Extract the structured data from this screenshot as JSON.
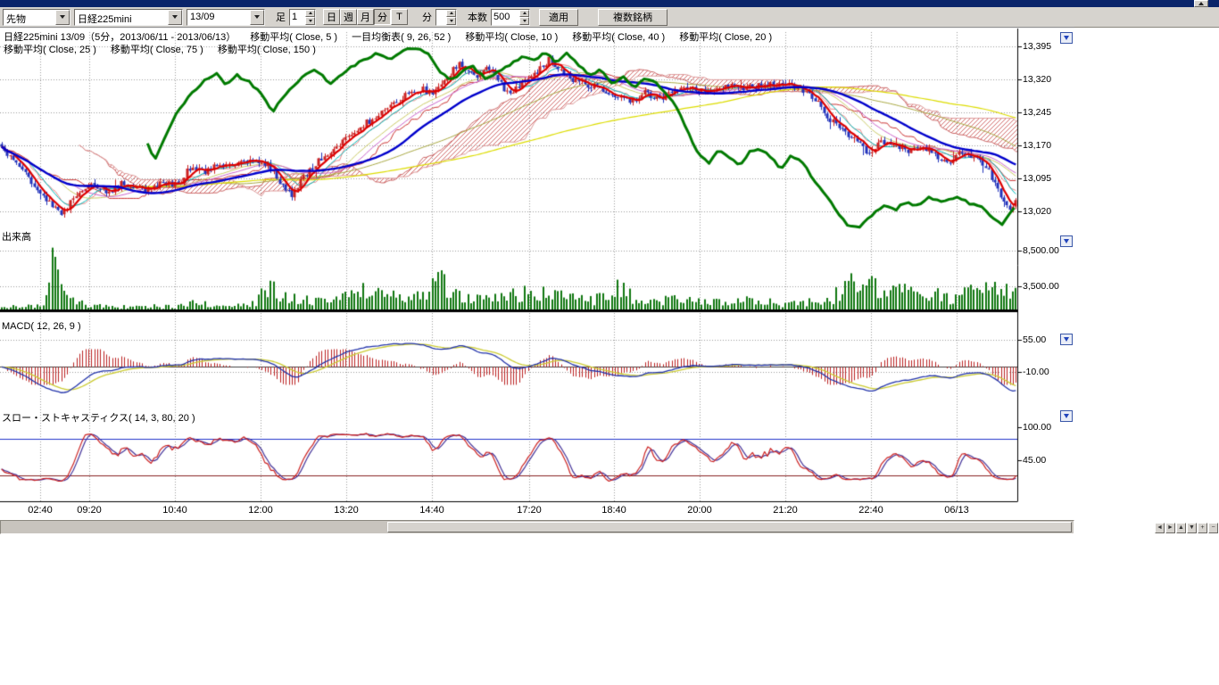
{
  "toolbar": {
    "category_select": "先物",
    "symbol_select": "日経225mini",
    "contract_select": "13/09",
    "bar_type_label": "足",
    "bar_interval_value": "1",
    "period_buttons": [
      "日",
      "週",
      "月",
      "分",
      "T"
    ],
    "active_period": "分",
    "minute_label": "分",
    "minute_value": "",
    "count_label": "本数",
    "count_value": "500",
    "apply_button": "適用",
    "multi_symbol_button": "複数銘柄"
  },
  "header": {
    "line1": [
      "日経225mini 13/09（5分，2013/06/11 - 2013/06/13）",
      "移動平均( Close, 5 )",
      "一目均衡表( 9, 26, 52 )",
      "移動平均( Close, 10 )",
      "移動平均( Close, 40 )",
      "移動平均( Close, 20 )"
    ],
    "line2": [
      "移動平均( Close, 25 )",
      "移動平均( Close, 75 )",
      "移動平均( Close, 150 )"
    ]
  },
  "panes": {
    "price": {
      "axis_labels": [
        "13,395",
        "13,320",
        "13,245",
        "13,170",
        "13,095",
        "13,020"
      ]
    },
    "volume": {
      "label": "出来高",
      "axis_labels": [
        "8,500.00",
        "3,500.00"
      ]
    },
    "macd": {
      "label": "MACD( 12, 26, 9 )",
      "axis_labels": [
        "55.00",
        "-10.00"
      ]
    },
    "stoch": {
      "label": "スロー・ストキャスティクス( 14, 3, 80, 20 )",
      "axis_labels": [
        "100.00",
        "45.00"
      ]
    }
  },
  "time_axis": {
    "labels": [
      "02:40",
      "09:20",
      "10:40",
      "12:00",
      "13:20",
      "14:40",
      "17:20",
      "18:40",
      "20:00",
      "21:20",
      "22:40",
      "06/13"
    ]
  },
  "chart_data": {
    "type": "candlestick",
    "title": "日経225mini 13/09（5分，2013/06/11 - 2013/06/13）",
    "symbol": "日経225mini 13/09",
    "interval": "5分",
    "date_range": "2013/06/11 - 2013/06/13",
    "bars": 340,
    "ylim": [
      12975,
      13435
    ],
    "price_gridlines": [
      13395,
      13320,
      13245,
      13170,
      13095,
      13020
    ],
    "volume_gridlines": [
      8500,
      3500
    ],
    "macd_gridlines": [
      55,
      -10
    ],
    "stoch_gridlines": [
      100,
      45
    ],
    "stoch_ref_lines": [
      80,
      20
    ],
    "indicators": {
      "moving_averages": [
        5,
        10,
        20,
        25,
        40,
        75,
        150
      ],
      "ichimoku": [
        9,
        26,
        52
      ],
      "macd": [
        12,
        26,
        9
      ],
      "slow_stochastics": [
        14,
        3,
        80,
        20
      ]
    },
    "close_path": [
      [
        0,
        13165
      ],
      [
        0.015,
        13125
      ],
      [
        0.03,
        13085
      ],
      [
        0.05,
        13035
      ],
      [
        0.06,
        13015
      ],
      [
        0.075,
        13060
      ],
      [
        0.09,
        13080
      ],
      [
        0.105,
        13065
      ],
      [
        0.12,
        13085
      ],
      [
        0.14,
        13070
      ],
      [
        0.16,
        13085
      ],
      [
        0.175,
        13080
      ],
      [
        0.185,
        13120
      ],
      [
        0.2,
        13110
      ],
      [
        0.215,
        13125
      ],
      [
        0.235,
        13130
      ],
      [
        0.255,
        13135
      ],
      [
        0.265,
        13120
      ],
      [
        0.275,
        13085
      ],
      [
        0.285,
        13055
      ],
      [
        0.295,
        13090
      ],
      [
        0.31,
        13130
      ],
      [
        0.325,
        13155
      ],
      [
        0.34,
        13185
      ],
      [
        0.355,
        13215
      ],
      [
        0.37,
        13235
      ],
      [
        0.385,
        13260
      ],
      [
        0.4,
        13285
      ],
      [
        0.415,
        13300
      ],
      [
        0.425,
        13285
      ],
      [
        0.44,
        13325
      ],
      [
        0.45,
        13355
      ],
      [
        0.46,
        13335
      ],
      [
        0.47,
        13325
      ],
      [
        0.48,
        13350
      ],
      [
        0.49,
        13320
      ],
      [
        0.5,
        13285
      ],
      [
        0.51,
        13305
      ],
      [
        0.525,
        13330
      ],
      [
        0.54,
        13365
      ],
      [
        0.55,
        13345
      ],
      [
        0.56,
        13325
      ],
      [
        0.575,
        13310
      ],
      [
        0.59,
        13300
      ],
      [
        0.605,
        13280
      ],
      [
        0.62,
        13270
      ],
      [
        0.635,
        13290
      ],
      [
        0.65,
        13275
      ],
      [
        0.665,
        13300
      ],
      [
        0.69,
        13295
      ],
      [
        0.71,
        13305
      ],
      [
        0.73,
        13300
      ],
      [
        0.75,
        13305
      ],
      [
        0.77,
        13310
      ],
      [
        0.785,
        13305
      ],
      [
        0.795,
        13290
      ],
      [
        0.805,
        13265
      ],
      [
        0.815,
        13235
      ],
      [
        0.83,
        13200
      ],
      [
        0.845,
        13175
      ],
      [
        0.855,
        13150
      ],
      [
        0.868,
        13180
      ],
      [
        0.88,
        13170
      ],
      [
        0.893,
        13158
      ],
      [
        0.905,
        13172
      ],
      [
        0.92,
        13150
      ],
      [
        0.933,
        13128
      ],
      [
        0.945,
        13155
      ],
      [
        0.955,
        13148
      ],
      [
        0.965,
        13130
      ],
      [
        0.975,
        13105
      ],
      [
        0.985,
        13060
      ],
      [
        0.993,
        13022
      ],
      [
        1,
        13045
      ]
    ],
    "green_overlay_path": [
      [
        0.145,
        13175
      ],
      [
        0.152,
        13135
      ],
      [
        0.16,
        13175
      ],
      [
        0.172,
        13240
      ],
      [
        0.185,
        13280
      ],
      [
        0.2,
        13315
      ],
      [
        0.212,
        13335
      ],
      [
        0.222,
        13305
      ],
      [
        0.232,
        13330
      ],
      [
        0.245,
        13315
      ],
      [
        0.258,
        13285
      ],
      [
        0.268,
        13245
      ],
      [
        0.28,
        13285
      ],
      [
        0.295,
        13320
      ],
      [
        0.31,
        13345
      ],
      [
        0.325,
        13310
      ],
      [
        0.34,
        13340
      ],
      [
        0.355,
        13360
      ],
      [
        0.37,
        13380
      ],
      [
        0.382,
        13365
      ],
      [
        0.395,
        13385
      ],
      [
        0.408,
        13392
      ],
      [
        0.42,
        13380
      ],
      [
        0.432,
        13340
      ],
      [
        0.443,
        13315
      ],
      [
        0.455,
        13340
      ],
      [
        0.465,
        13348
      ],
      [
        0.477,
        13322
      ],
      [
        0.49,
        13338
      ],
      [
        0.502,
        13356
      ],
      [
        0.513,
        13372
      ],
      [
        0.525,
        13362
      ],
      [
        0.535,
        13380
      ],
      [
        0.547,
        13360
      ],
      [
        0.557,
        13382
      ],
      [
        0.568,
        13355
      ],
      [
        0.58,
        13328
      ],
      [
        0.59,
        13342
      ],
      [
        0.602,
        13312
      ],
      [
        0.613,
        13325
      ],
      [
        0.623,
        13302
      ],
      [
        0.633,
        13322
      ],
      [
        0.645,
        13310
      ],
      [
        0.655,
        13288
      ],
      [
        0.665,
        13258
      ],
      [
        0.675,
        13205
      ],
      [
        0.685,
        13155
      ],
      [
        0.697,
        13132
      ],
      [
        0.707,
        13162
      ],
      [
        0.717,
        13142
      ],
      [
        0.727,
        13122
      ],
      [
        0.737,
        13158
      ],
      [
        0.748,
        13162
      ],
      [
        0.758,
        13140
      ],
      [
        0.768,
        13118
      ],
      [
        0.778,
        13148
      ],
      [
        0.79,
        13130
      ],
      [
        0.8,
        13092
      ],
      [
        0.81,
        13062
      ],
      [
        0.82,
        13030
      ],
      [
        0.832,
        12992
      ],
      [
        0.845,
        12982
      ],
      [
        0.857,
        13012
      ],
      [
        0.87,
        13032
      ],
      [
        0.88,
        13022
      ],
      [
        0.89,
        13042
      ],
      [
        0.9,
        13030
      ],
      [
        0.912,
        13052
      ],
      [
        0.925,
        13040
      ],
      [
        0.94,
        13052
      ],
      [
        0.952,
        13040
      ],
      [
        0.965,
        13028
      ],
      [
        0.975,
        13008
      ],
      [
        0.985,
        12988
      ],
      [
        0.995,
        13025
      ]
    ],
    "volume_profile": [
      [
        0,
        900
      ],
      [
        0.03,
        700
      ],
      [
        0.045,
        2000
      ],
      [
        0.05,
        9200
      ],
      [
        0.055,
        5200
      ],
      [
        0.06,
        2600
      ],
      [
        0.08,
        1200
      ],
      [
        0.1,
        900
      ],
      [
        0.12,
        700
      ],
      [
        0.15,
        800
      ],
      [
        0.17,
        650
      ],
      [
        0.19,
        1500
      ],
      [
        0.21,
        900
      ],
      [
        0.23,
        800
      ],
      [
        0.25,
        1300
      ],
      [
        0.265,
        4100
      ],
      [
        0.28,
        2200
      ],
      [
        0.3,
        1800
      ],
      [
        0.32,
        1500
      ],
      [
        0.34,
        2600
      ],
      [
        0.36,
        3600
      ],
      [
        0.38,
        2100
      ],
      [
        0.4,
        2600
      ],
      [
        0.42,
        3100
      ],
      [
        0.43,
        5700
      ],
      [
        0.445,
        2600
      ],
      [
        0.46,
        2100
      ],
      [
        0.48,
        1900
      ],
      [
        0.5,
        2300
      ],
      [
        0.52,
        3300
      ],
      [
        0.54,
        2700
      ],
      [
        0.55,
        3900
      ],
      [
        0.565,
        2100
      ],
      [
        0.58,
        1600
      ],
      [
        0.6,
        2600
      ],
      [
        0.61,
        3700
      ],
      [
        0.625,
        1900
      ],
      [
        0.64,
        1300
      ],
      [
        0.66,
        2100
      ],
      [
        0.68,
        1600
      ],
      [
        0.7,
        1300
      ],
      [
        0.72,
        1600
      ],
      [
        0.74,
        1900
      ],
      [
        0.76,
        1400
      ],
      [
        0.78,
        1100
      ],
      [
        0.8,
        1600
      ],
      [
        0.82,
        2100
      ],
      [
        0.835,
        4600
      ],
      [
        0.85,
        3100
      ],
      [
        0.862,
        4100
      ],
      [
        0.875,
        2600
      ],
      [
        0.887,
        3300
      ],
      [
        0.9,
        2900
      ],
      [
        0.912,
        2300
      ],
      [
        0.925,
        2600
      ],
      [
        0.937,
        1900
      ],
      [
        0.95,
        2700
      ],
      [
        0.962,
        3100
      ],
      [
        0.975,
        3500
      ],
      [
        0.987,
        2900
      ],
      [
        1,
        3300
      ]
    ]
  },
  "colors": {
    "background": "#ffffff",
    "toolbar_bg": "#d6d3ce",
    "titlebar": "#0a246a",
    "grid": "#9a9a9a",
    "candle_up": "#cc2222",
    "candle_down": "#2233bb",
    "ma5": "#dd0000",
    "ma10": "#00bbbb",
    "ma20": "#cccc66",
    "ma25": "#cc66cc",
    "ma40": "#0000cc",
    "ma75": "#aaaa44",
    "ma150": "#dddd00",
    "ichimoku_cloud": "#cc4646",
    "overlay_line": "#007a00",
    "volume": "#117711",
    "macd_line": "#2233aa",
    "macd_signal": "#cccc33",
    "macd_hist": "#bb2222",
    "stoch_k": "#cc2222",
    "stoch_d": "#443399",
    "stoch_ref_upper": "#2233cc",
    "stoch_ref_lower": "#882222"
  }
}
